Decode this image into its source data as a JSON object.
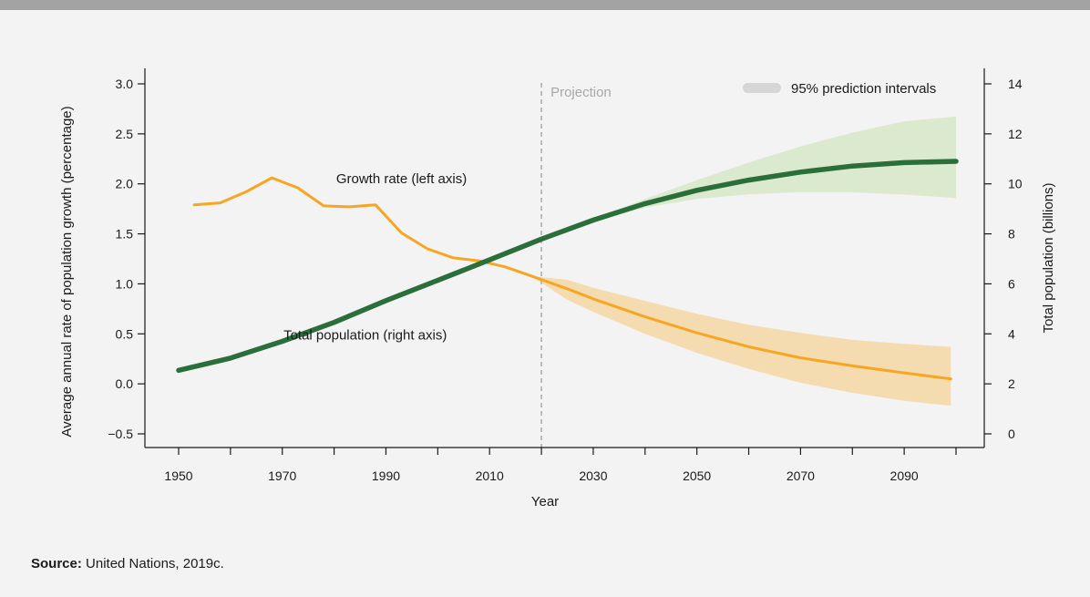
{
  "chart_data": {
    "type": "line",
    "xlabel": "Year",
    "ylabel_left": "Average annual rate of population growth (percentage)",
    "ylabel_right": "Total population (billions)",
    "x_ticks": [
      1950,
      1960,
      1970,
      1980,
      1990,
      2000,
      2010,
      2020,
      2030,
      2040,
      2050,
      2060,
      2070,
      2080,
      2090,
      2100
    ],
    "x_tick_labels": [
      "1950",
      "1970",
      "1990",
      "2010",
      "2030",
      "2050",
      "2070",
      "2090"
    ],
    "xlim": [
      1950,
      2100
    ],
    "ylim_left": [
      -0.5,
      3.0
    ],
    "yticks_left": [
      -0.5,
      0.0,
      0.5,
      1.0,
      1.5,
      2.0,
      2.5,
      3.0
    ],
    "ytick_labels_left": [
      "−0.5",
      "0.0",
      "0.5",
      "1.0",
      "1.5",
      "2.0",
      "2.5",
      "3.0"
    ],
    "ylim_right": [
      0,
      14
    ],
    "yticks_right": [
      0,
      2,
      4,
      6,
      8,
      10,
      12,
      14
    ],
    "ytick_labels_right": [
      "0",
      "2",
      "4",
      "6",
      "8",
      "10",
      "12",
      "14"
    ],
    "projection_year": 2020,
    "projection_label": "Projection",
    "legend_label": "95% prediction intervals",
    "colors": {
      "growth": "#f6a623",
      "population": "#2a6e3a",
      "growth_band": "#f5dbb0",
      "population_band": "#dbeacf",
      "legend_swatch": "#d6d6d6",
      "projection_line": "#a8a8a8",
      "projection_text": "#a8a8a8"
    },
    "series": [
      {
        "name": "Growth rate (left axis)",
        "axis": "left",
        "x": [
          1953,
          1958,
          1963,
          1968,
          1973,
          1978,
          1983,
          1988,
          1993,
          1998,
          2003,
          2008,
          2013,
          2018,
          2025,
          2030,
          2040,
          2050,
          2060,
          2070,
          2080,
          2090,
          2099
        ],
        "y": [
          1.79,
          1.81,
          1.92,
          2.06,
          1.96,
          1.78,
          1.77,
          1.79,
          1.51,
          1.35,
          1.26,
          1.23,
          1.17,
          1.08,
          0.95,
          0.85,
          0.67,
          0.51,
          0.37,
          0.26,
          0.18,
          0.11,
          0.05
        ],
        "lower_95": [
          null,
          null,
          null,
          null,
          null,
          null,
          null,
          null,
          null,
          null,
          null,
          null,
          null,
          1.08,
          0.84,
          0.72,
          0.5,
          0.31,
          0.15,
          0.01,
          -0.09,
          -0.17,
          -0.22
        ],
        "upper_95": [
          null,
          null,
          null,
          null,
          null,
          null,
          null,
          null,
          null,
          null,
          null,
          null,
          null,
          1.08,
          1.04,
          0.96,
          0.83,
          0.7,
          0.59,
          0.51,
          0.44,
          0.4,
          0.37
        ]
      },
      {
        "name": "Total population (right axis)",
        "axis": "right",
        "x": [
          1950,
          1960,
          1970,
          1980,
          1990,
          2000,
          2010,
          2020,
          2030,
          2040,
          2050,
          2060,
          2070,
          2080,
          2090,
          2100
        ],
        "y": [
          2.54,
          3.03,
          3.7,
          4.46,
          5.33,
          6.14,
          6.96,
          7.79,
          8.55,
          9.21,
          9.74,
          10.15,
          10.47,
          10.71,
          10.85,
          10.9
        ],
        "lower_95": [
          null,
          null,
          null,
          null,
          null,
          null,
          null,
          7.79,
          8.5,
          9.05,
          9.4,
          9.58,
          9.67,
          9.66,
          9.57,
          9.43
        ],
        "upper_95": [
          null,
          null,
          null,
          null,
          null,
          null,
          null,
          7.79,
          8.6,
          9.4,
          10.15,
          10.85,
          11.5,
          12.05,
          12.5,
          12.7
        ]
      }
    ],
    "annotations": [
      {
        "text": "Growth rate (left axis)",
        "x": 1993,
        "y": 2.05,
        "axis": "left"
      },
      {
        "text": "Total population (right axis)",
        "x": 1986,
        "y": 3.96,
        "axis": "right"
      }
    ]
  },
  "source": {
    "label": "Source:",
    "text": " United Nations, 2019c."
  }
}
